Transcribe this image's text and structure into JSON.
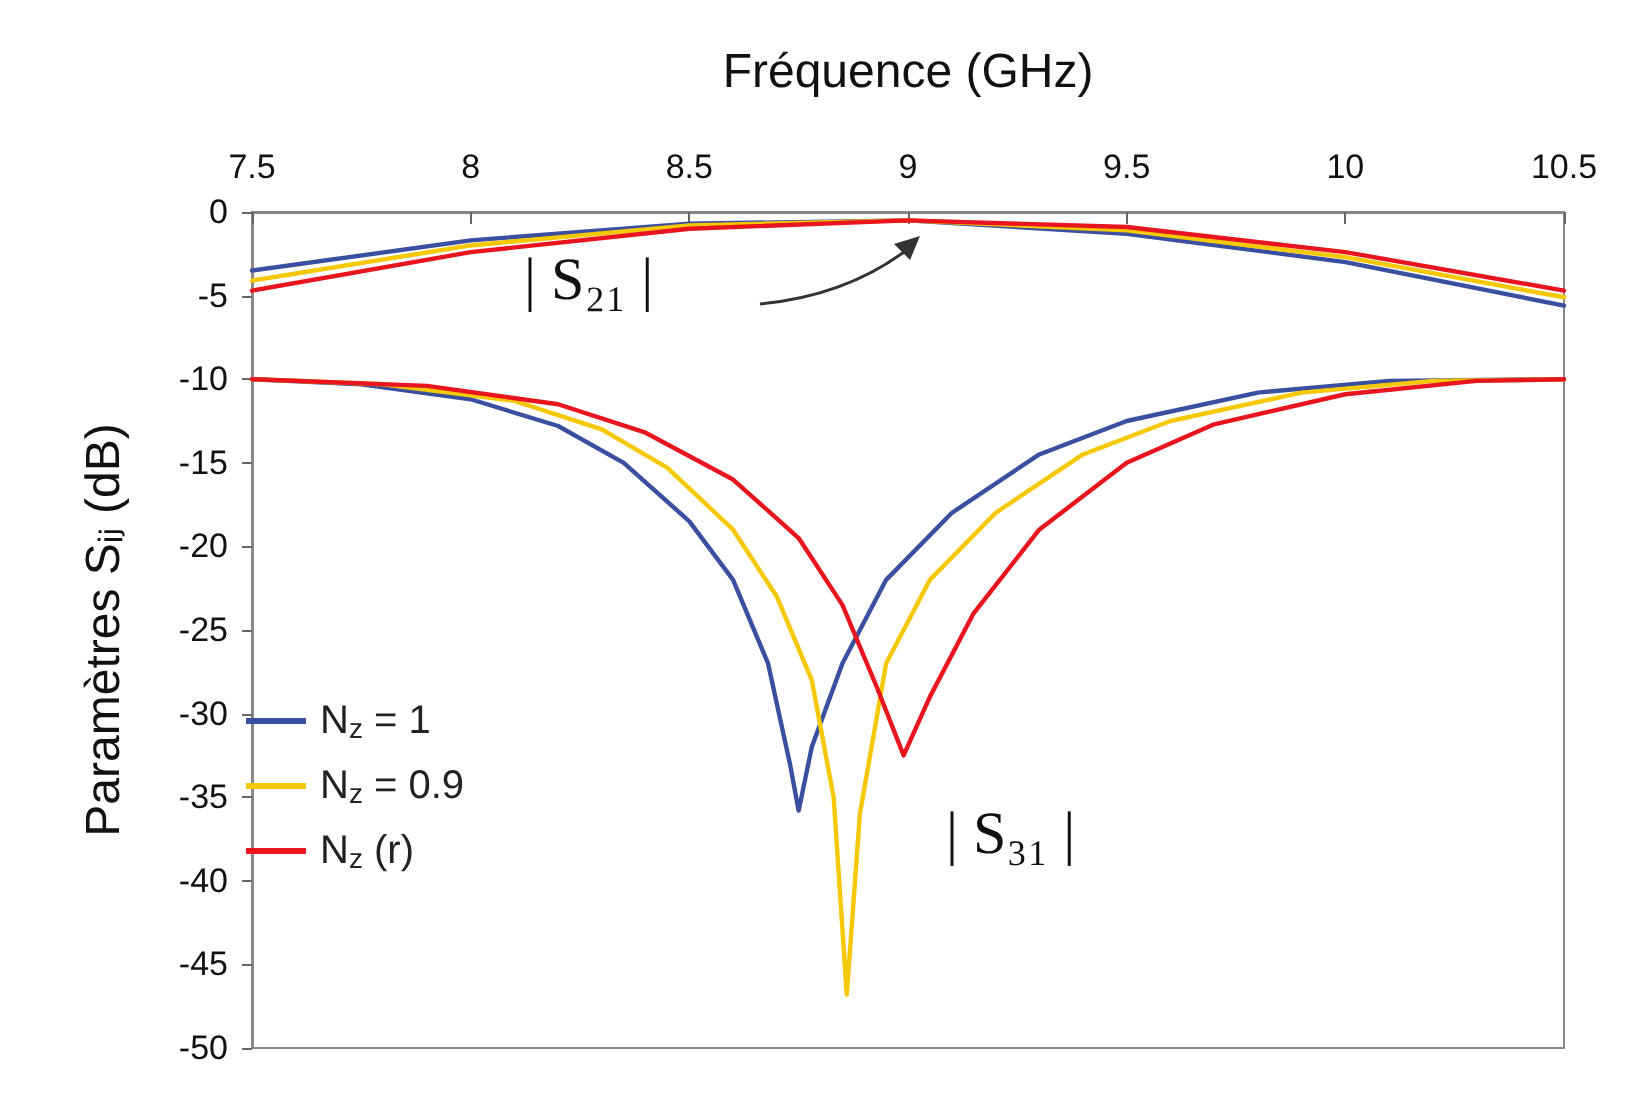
{
  "chart_data": {
    "type": "line",
    "xlabel": "Fréquence (GHz)",
    "ylabel": "Paramètres Sᵢⱼ (dB)",
    "xlim": [
      7.5,
      10.5
    ],
    "xticks": [
      7.5,
      8,
      8.5,
      9,
      9.5,
      10,
      10.5
    ],
    "ylim": [
      -50,
      0
    ],
    "yticks": [
      -50,
      -45,
      -40,
      -35,
      -30,
      -25,
      -20,
      -15,
      -10,
      -5,
      0
    ],
    "grid": false,
    "legend": "bottom left",
    "marker": "none",
    "line_style": "solid",
    "series": [
      {
        "name": "N$_{z}$ = 1",
        "color": "#3b4fa0",
        "x": [
          7.5,
          7.75,
          8.0,
          8.2,
          8.35,
          8.5,
          8.6,
          8.68,
          8.73,
          8.75,
          8.78,
          8.85,
          8.95,
          9.1,
          9.3,
          9.5,
          9.8,
          10.1,
          10.5
        ],
        "values": [
          -10,
          -10.3,
          -11.2,
          -12.8,
          -15,
          -18.5,
          -22,
          -27,
          -33,
          -35.8,
          -32,
          -27,
          -22,
          -18,
          -14.5,
          -12.5,
          -10.8,
          -10.1,
          -10
        ]
      },
      {
        "name": "N$_{z}$ = 0.9",
        "color": "#f5c800",
        "x": [
          7.5,
          7.8,
          8.1,
          8.3,
          8.45,
          8.6,
          8.7,
          8.78,
          8.83,
          8.86,
          8.89,
          8.95,
          9.05,
          9.2,
          9.4,
          9.6,
          9.9,
          10.2,
          10.5
        ],
        "values": [
          -10,
          -10.3,
          -11.3,
          -13,
          -15.3,
          -19,
          -23,
          -28,
          -35,
          -46.8,
          -36,
          -27,
          -22,
          -18,
          -14.5,
          -12.5,
          -10.8,
          -10.1,
          -10
        ]
      },
      {
        "name": "N$_{z}$ (r)",
        "color": "#e8141e",
        "x": [
          7.5,
          7.9,
          8.2,
          8.4,
          8.6,
          8.75,
          8.85,
          8.93,
          8.99,
          9.05,
          9.15,
          9.3,
          9.5,
          9.7,
          10.0,
          10.3,
          10.5
        ],
        "values": [
          -10,
          -10.4,
          -11.5,
          -13.2,
          -16,
          -19.5,
          -23.5,
          -28.5,
          -32.5,
          -29,
          -24,
          -19,
          -15,
          -12.7,
          -10.9,
          -10.1,
          -10
        ]
      },
      {
        "color": "#3b4fa0",
        "x": [
          7.5,
          8,
          8.5,
          9,
          9.5,
          10,
          10.5
        ],
        "values": [
          -3.5,
          -1.7,
          -0.7,
          -0.5,
          -1.3,
          -3.0,
          -5.6
        ]
      },
      {
        "color": "#f5c800",
        "x": [
          7.5,
          8,
          8.5,
          9,
          9.5,
          10,
          10.5
        ],
        "values": [
          -4.1,
          -2.0,
          -0.8,
          -0.5,
          -1.1,
          -2.7,
          -5.1
        ]
      },
      {
        "color": "#e8141e",
        "x": [
          7.5,
          8,
          8.5,
          9,
          9.5,
          10,
          10.5
        ],
        "values": [
          -4.7,
          -2.4,
          -1.0,
          -0.5,
          -0.9,
          -2.4,
          -4.7
        ]
      }
    ],
    "annotations": [
      "| S₂₁ |",
      "| S₃₁ |"
    ]
  }
}
